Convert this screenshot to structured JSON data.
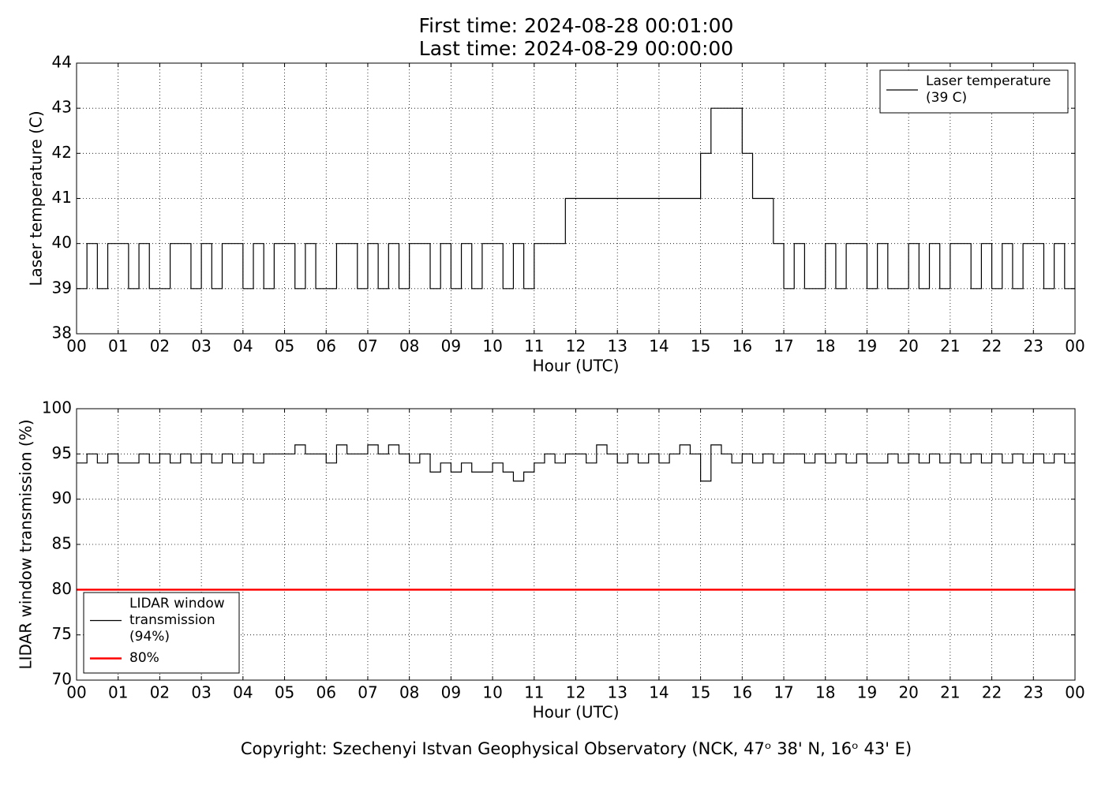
{
  "title_lines": [
    "First time: 2024-08-28 00:01:00",
    "Last time: 2024-08-29 00:00:00"
  ],
  "footer": "Copyright: Szechenyi Istvan Geophysical Observatory (NCK, 47ᵒ 38' N, 16ᵒ 43' E)",
  "chart_data": [
    {
      "type": "line",
      "drawstyle": "steps-post",
      "grid": true,
      "legend": "upper right",
      "xlabel": "Hour (UTC)",
      "ylabel": "Laser temperature (C)",
      "xlim": [
        0,
        24
      ],
      "ylim": [
        38,
        44
      ],
      "yticks": [
        38,
        39,
        40,
        41,
        42,
        43,
        44
      ],
      "xticks": [
        {
          "value": 0,
          "label": "00"
        },
        {
          "value": 1,
          "label": "01"
        },
        {
          "value": 2,
          "label": "02"
        },
        {
          "value": 3,
          "label": "03"
        },
        {
          "value": 4,
          "label": "04"
        },
        {
          "value": 5,
          "label": "05"
        },
        {
          "value": 6,
          "label": "06"
        },
        {
          "value": 7,
          "label": "07"
        },
        {
          "value": 8,
          "label": "08"
        },
        {
          "value": 9,
          "label": "09"
        },
        {
          "value": 10,
          "label": "10"
        },
        {
          "value": 11,
          "label": "11"
        },
        {
          "value": 12,
          "label": "12"
        },
        {
          "value": 13,
          "label": "13"
        },
        {
          "value": 14,
          "label": "14"
        },
        {
          "value": 15,
          "label": "15"
        },
        {
          "value": 16,
          "label": "16"
        },
        {
          "value": 17,
          "label": "17"
        },
        {
          "value": 18,
          "label": "18"
        },
        {
          "value": 19,
          "label": "19"
        },
        {
          "value": 20,
          "label": "20"
        },
        {
          "value": 21,
          "label": "21"
        },
        {
          "value": 22,
          "label": "22"
        },
        {
          "value": 23,
          "label": "23"
        },
        {
          "value": 24,
          "label": "00"
        }
      ],
      "series": [
        {
          "name": "Laser temperature (39 C)",
          "color": "#000000",
          "width": 1.2,
          "x": [
            0,
            0.25,
            0.5,
            0.75,
            1,
            1.25,
            1.5,
            1.75,
            2,
            2.25,
            2.5,
            2.75,
            3,
            3.25,
            3.5,
            3.75,
            4,
            4.25,
            4.5,
            4.75,
            5,
            5.25,
            5.5,
            5.75,
            6,
            6.25,
            6.5,
            6.75,
            7,
            7.25,
            7.5,
            7.75,
            8,
            8.25,
            8.5,
            8.75,
            9,
            9.25,
            9.5,
            9.75,
            10,
            10.25,
            10.5,
            10.75,
            11,
            11.25,
            11.5,
            11.75,
            12,
            12.25,
            12.5,
            12.75,
            13,
            13.25,
            13.5,
            13.75,
            14,
            14.25,
            14.5,
            14.75,
            15,
            15.25,
            15.5,
            15.75,
            16,
            16.25,
            16.5,
            16.75,
            17,
            17.25,
            17.5,
            17.75,
            18,
            18.25,
            18.5,
            18.75,
            19,
            19.25,
            19.5,
            19.75,
            20,
            20.25,
            20.5,
            20.75,
            21,
            21.25,
            21.5,
            21.75,
            22,
            22.25,
            22.5,
            22.75,
            23,
            23.25,
            23.5,
            23.75,
            24
          ],
          "values": [
            39,
            40,
            39,
            40,
            40,
            39,
            40,
            39,
            39,
            40,
            40,
            39,
            40,
            39,
            40,
            40,
            39,
            40,
            39,
            40,
            40,
            39,
            40,
            39,
            39,
            40,
            40,
            39,
            40,
            39,
            40,
            39,
            40,
            40,
            39,
            40,
            39,
            40,
            39,
            40,
            40,
            39,
            40,
            39,
            40,
            40,
            40,
            41,
            41,
            41,
            41,
            41,
            41,
            41,
            41,
            41,
            41,
            41,
            41,
            41,
            42,
            43,
            43,
            43,
            42,
            41,
            41,
            40,
            39,
            40,
            39,
            39,
            40,
            39,
            40,
            40,
            39,
            40,
            39,
            39,
            40,
            39,
            40,
            39,
            40,
            40,
            39,
            40,
            39,
            40,
            39,
            40,
            40,
            39,
            40,
            39,
            40
          ]
        }
      ]
    },
    {
      "type": "line",
      "drawstyle": "steps-post",
      "grid": true,
      "legend": "lower left",
      "xlabel": "Hour (UTC)",
      "ylabel": "LIDAR window transmission (%)",
      "xlim": [
        0,
        24
      ],
      "ylim": [
        70,
        100
      ],
      "yticks": [
        70,
        75,
        80,
        85,
        90,
        95,
        100
      ],
      "xticks": [
        {
          "value": 0,
          "label": "00"
        },
        {
          "value": 1,
          "label": "01"
        },
        {
          "value": 2,
          "label": "02"
        },
        {
          "value": 3,
          "label": "03"
        },
        {
          "value": 4,
          "label": "04"
        },
        {
          "value": 5,
          "label": "05"
        },
        {
          "value": 6,
          "label": "06"
        },
        {
          "value": 7,
          "label": "07"
        },
        {
          "value": 8,
          "label": "08"
        },
        {
          "value": 9,
          "label": "09"
        },
        {
          "value": 10,
          "label": "10"
        },
        {
          "value": 11,
          "label": "11"
        },
        {
          "value": 12,
          "label": "12"
        },
        {
          "value": 13,
          "label": "13"
        },
        {
          "value": 14,
          "label": "14"
        },
        {
          "value": 15,
          "label": "15"
        },
        {
          "value": 16,
          "label": "16"
        },
        {
          "value": 17,
          "label": "17"
        },
        {
          "value": 18,
          "label": "18"
        },
        {
          "value": 19,
          "label": "19"
        },
        {
          "value": 20,
          "label": "20"
        },
        {
          "value": 21,
          "label": "21"
        },
        {
          "value": 22,
          "label": "22"
        },
        {
          "value": 23,
          "label": "23"
        },
        {
          "value": 24,
          "label": "00"
        }
      ],
      "series": [
        {
          "name": "LIDAR window transmission (94%)",
          "color": "#000000",
          "width": 1.2,
          "x": [
            0,
            0.25,
            0.5,
            0.75,
            1,
            1.25,
            1.5,
            1.75,
            2,
            2.25,
            2.5,
            2.75,
            3,
            3.25,
            3.5,
            3.75,
            4,
            4.25,
            4.5,
            4.75,
            5,
            5.25,
            5.5,
            5.75,
            6,
            6.25,
            6.5,
            6.75,
            7,
            7.25,
            7.5,
            7.75,
            8,
            8.25,
            8.5,
            8.75,
            9,
            9.25,
            9.5,
            9.75,
            10,
            10.25,
            10.5,
            10.75,
            11,
            11.25,
            11.5,
            11.75,
            12,
            12.25,
            12.5,
            12.75,
            13,
            13.25,
            13.5,
            13.75,
            14,
            14.25,
            14.5,
            14.75,
            15,
            15.25,
            15.5,
            15.75,
            16,
            16.25,
            16.5,
            16.75,
            17,
            17.25,
            17.5,
            17.75,
            18,
            18.25,
            18.5,
            18.75,
            19,
            19.25,
            19.5,
            19.75,
            20,
            20.25,
            20.5,
            20.75,
            21,
            21.25,
            21.5,
            21.75,
            22,
            22.25,
            22.5,
            22.75,
            23,
            23.25,
            23.5,
            23.75,
            24
          ],
          "values": [
            94,
            95,
            94,
            95,
            94,
            94,
            95,
            94,
            95,
            94,
            95,
            94,
            95,
            94,
            95,
            94,
            95,
            94,
            95,
            95,
            95,
            96,
            95,
            95,
            94,
            96,
            95,
            95,
            96,
            95,
            96,
            95,
            94,
            95,
            93,
            94,
            93,
            94,
            93,
            93,
            94,
            93,
            92,
            93,
            94,
            95,
            94,
            95,
            95,
            94,
            96,
            95,
            94,
            95,
            94,
            95,
            94,
            95,
            96,
            95,
            92,
            96,
            95,
            94,
            95,
            94,
            95,
            94,
            95,
            95,
            94,
            95,
            94,
            95,
            94,
            95,
            94,
            94,
            95,
            94,
            95,
            94,
            95,
            94,
            95,
            94,
            95,
            94,
            95,
            94,
            95,
            94,
            95,
            94,
            95,
            94,
            95
          ]
        },
        {
          "name": "80%",
          "color": "#ff0000",
          "width": 2.5,
          "x": [
            0,
            24
          ],
          "values": [
            80,
            80
          ]
        }
      ]
    }
  ]
}
